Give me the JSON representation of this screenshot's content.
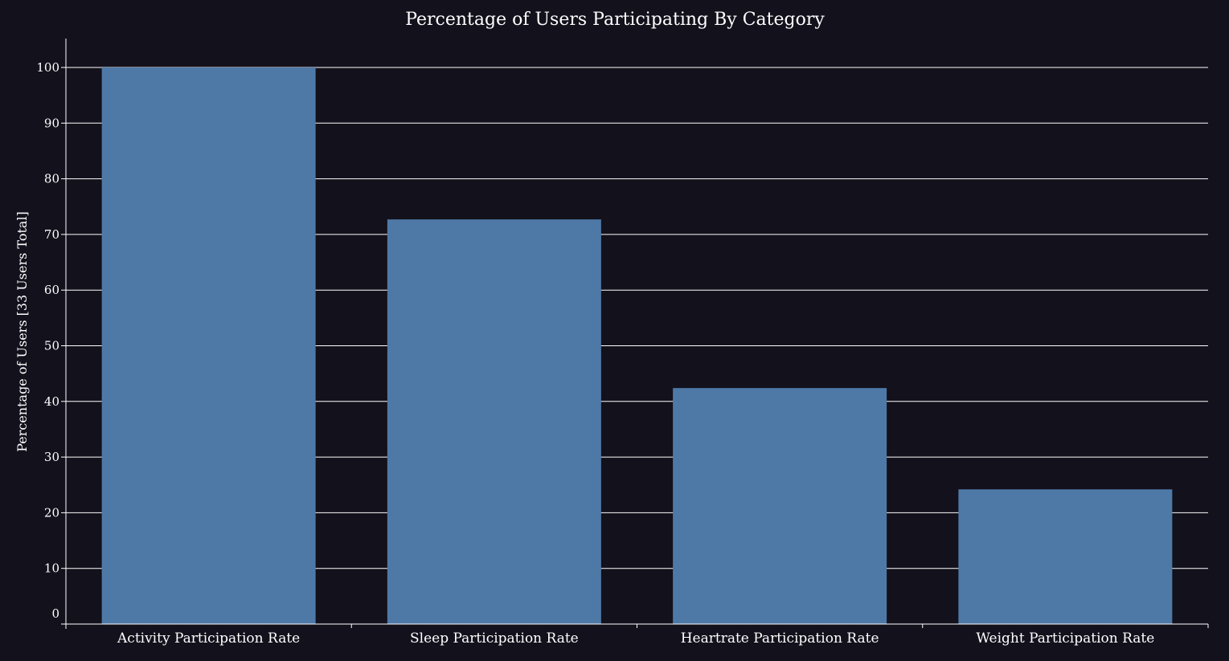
{
  "chart_data": {
    "type": "bar",
    "title": "Percentage of Users Participating By Category",
    "xlabel": "",
    "ylabel": "Percentage of Users [33 Users Total]",
    "categories": [
      "Activity Participation Rate",
      "Sleep Participation Rate",
      "Heartrate Participation Rate",
      "Weight Participation Rate"
    ],
    "values": [
      100,
      72.7,
      42.4,
      24.2
    ],
    "ylim": [
      0,
      100
    ],
    "yticks": [
      "0",
      "10",
      "20",
      "30",
      "40",
      "50",
      "60",
      "70",
      "80",
      "90",
      "100"
    ],
    "grid": true,
    "colors": {
      "background": "#13111c",
      "bar": "#4e79a7",
      "text": "#ffffff",
      "grid": "#ffffff"
    }
  }
}
